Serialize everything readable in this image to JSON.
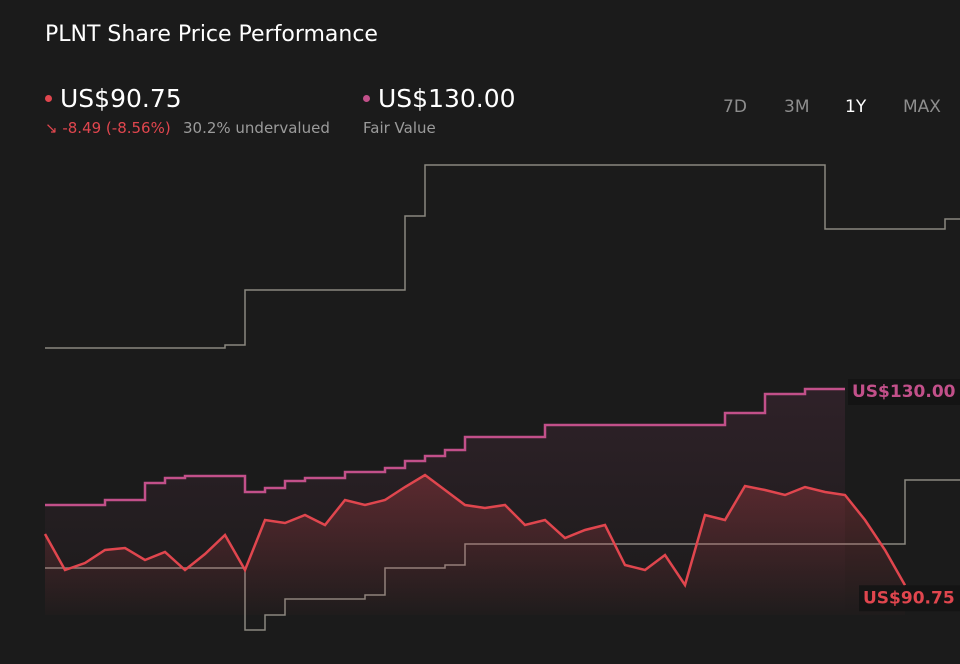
{
  "header": {
    "title": "PLNT Share Price Performance",
    "price": {
      "label": "US$90.75",
      "change": "-8.49 (-8.56%)",
      "valuation": "30.2% undervalued"
    },
    "fair_value": {
      "label": "US$130.00",
      "caption": "Fair Value"
    },
    "ranges": [
      "7D",
      "3M",
      "1Y",
      "MAX"
    ],
    "active_range": "1Y"
  },
  "chart_data": {
    "type": "line",
    "ylim": [
      80.8,
      175.8
    ],
    "series": [
      {
        "color": "#8a877f",
        "step": true,
        "values": [
          138.2,
          138.2,
          138.2,
          138.2,
          138.2,
          138.2,
          138.2,
          138.2,
          138.2,
          138.8,
          149.8,
          149.8,
          149.8,
          149.8,
          149.8,
          149.8,
          149.8,
          149.8,
          164.6,
          174.8,
          174.8,
          174.8,
          174.8,
          174.8,
          174.8,
          174.8,
          174.8,
          174.8,
          174.8,
          174.8,
          174.8,
          174.8,
          174.8,
          174.8,
          174.8,
          174.8,
          174.8,
          174.8,
          174.8,
          162,
          162,
          162,
          162,
          162,
          162,
          164
        ]
      },
      {
        "color": "#8a877f",
        "step": true,
        "values": [
          94.2,
          94.2,
          94.2,
          94.2,
          94.2,
          94.2,
          94.2,
          94.2,
          94.2,
          94.2,
          81.8,
          84.8,
          88,
          88,
          88,
          88,
          88.8,
          94.2,
          94.2,
          94.2,
          94.8,
          99,
          99,
          99,
          99,
          99,
          99,
          99,
          99,
          99,
          99,
          99,
          99,
          99,
          99,
          99,
          99,
          99,
          99,
          99,
          99,
          99,
          99,
          111.8,
          111.8,
          111.8
        ]
      },
      {
        "name": "Fair Value",
        "color": "#c2508a",
        "step": true,
        "end_label": "US$130.00",
        "values": [
          106.8,
          106.8,
          106.8,
          107.8,
          107.8,
          111.2,
          112.2,
          112.6,
          112.6,
          112.6,
          109.4,
          110.2,
          111.6,
          112.2,
          112.2,
          113.4,
          113.4,
          114.2,
          115.6,
          116.6,
          117.8,
          120.4,
          120.4,
          120.4,
          120.4,
          122.8,
          122.8,
          122.8,
          122.8,
          122.8,
          122.8,
          122.8,
          122.8,
          122.8,
          125.2,
          125.2,
          129,
          129,
          130,
          130,
          130,
          null,
          null,
          null,
          null,
          null
        ]
      },
      {
        "name": "Share Price",
        "color": "#e0464e",
        "area": true,
        "end_label": "US$90.75",
        "values": [
          101,
          93.8,
          95.2,
          97.8,
          98.2,
          95.8,
          97.4,
          93.8,
          97,
          100.8,
          93.8,
          103.8,
          103.2,
          104.8,
          102.8,
          107.8,
          106.8,
          107.8,
          110.4,
          112.8,
          109.8,
          106.8,
          106.2,
          106.8,
          102.8,
          103.8,
          100.2,
          101.8,
          102.8,
          94.8,
          93.8,
          96.8,
          90.8,
          104.8,
          103.8,
          110.6,
          109.8,
          108.8,
          110.4,
          109.4,
          108.8,
          103.8,
          97.8,
          90.75,
          null,
          null
        ]
      }
    ]
  }
}
